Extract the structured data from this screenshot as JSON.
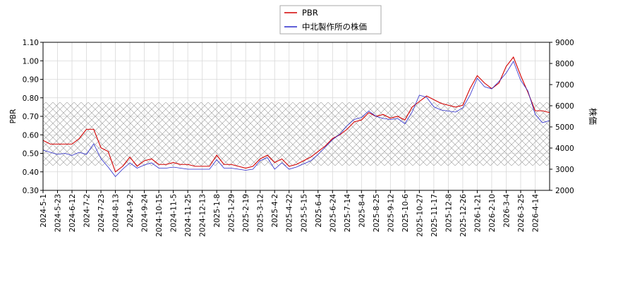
{
  "chart_data": {
    "type": "line",
    "categories": [
      "2024-5-1",
      null,
      "2024-5-23",
      null,
      "2024-6-12",
      null,
      "2024-7-2",
      null,
      "2024-7-23",
      null,
      "2024-8-13",
      null,
      "2024-9-2",
      null,
      "2024-9-24",
      null,
      "2024-10-15",
      null,
      "2024-11-5",
      null,
      "2024-11-25",
      null,
      "2024-12-13",
      null,
      "2025-1-8",
      null,
      "2025-1-29",
      null,
      "2025-2-19",
      null,
      "2025-3-12",
      null,
      "2025-4-2",
      null,
      "2025-4-22",
      null,
      "2025-5-15",
      null,
      "2025-6-4",
      null,
      "2025-6-24",
      null,
      "2025-7-14",
      null,
      "2025-8-4",
      null,
      "2025-8-25",
      null,
      "2025-9-12",
      null,
      "2025-10-6",
      null,
      "2025-10-27",
      null,
      "2025-11-17",
      null,
      "2025-12-8",
      null,
      "2025-12-26",
      null,
      "2026-1-21",
      null,
      "2026-2-10",
      null,
      "2026-3-4",
      null,
      "2026-3-25",
      null,
      "2026-4-14",
      null,
      null
    ],
    "series": [
      {
        "name": "PBR",
        "color": "#d40000",
        "values": [
          0.57,
          0.55,
          0.55,
          0.55,
          0.55,
          0.58,
          0.63,
          0.63,
          0.53,
          0.51,
          0.4,
          0.43,
          0.48,
          0.43,
          0.46,
          0.47,
          0.44,
          0.44,
          0.45,
          0.44,
          0.44,
          0.43,
          0.43,
          0.43,
          0.49,
          0.44,
          0.44,
          0.43,
          0.42,
          0.43,
          0.47,
          0.49,
          0.45,
          0.47,
          0.43,
          0.44,
          0.46,
          0.48,
          0.51,
          0.54,
          0.58,
          0.6,
          0.63,
          0.67,
          0.68,
          0.72,
          0.7,
          0.71,
          0.69,
          0.7,
          0.68,
          0.75,
          0.78,
          0.81,
          0.79,
          0.77,
          0.76,
          0.75,
          0.76,
          0.85,
          0.92,
          0.88,
          0.85,
          0.88,
          0.97,
          1.02,
          0.92,
          0.83,
          0.73,
          0.73,
          0.72
        ]
      },
      {
        "name": "中北製作所の株価",
        "color": "#2a2acc",
        "axis": "y2",
        "values": [
          3900,
          3800,
          3700,
          3750,
          3650,
          3800,
          3700,
          4200,
          3500,
          3100,
          2650,
          3000,
          3300,
          3050,
          3200,
          3300,
          3050,
          3050,
          3100,
          3050,
          3000,
          3000,
          3000,
          3000,
          3450,
          3050,
          3050,
          3000,
          2950,
          3000,
          3400,
          3550,
          3000,
          3300,
          3000,
          3100,
          3250,
          3400,
          3700,
          4050,
          4400,
          4650,
          5050,
          5350,
          5450,
          5750,
          5500,
          5400,
          5350,
          5400,
          5150,
          5700,
          6500,
          6400,
          5950,
          5800,
          5750,
          5700,
          5900,
          6500,
          7300,
          6900,
          6800,
          7150,
          7550,
          8100,
          7200,
          6700,
          5600,
          5200,
          5300
        ]
      }
    ],
    "ylabel": "PBR",
    "y2label": "株価",
    "ylim": [
      0.3,
      1.1
    ],
    "yticks": [
      {
        "value": 0.3,
        "label": "0.30"
      },
      {
        "value": 0.4,
        "label": "0.40"
      },
      {
        "value": 0.5,
        "label": "0.50"
      },
      {
        "value": 0.6,
        "label": "0.60"
      },
      {
        "value": 0.7,
        "label": "0.70"
      },
      {
        "value": 0.8,
        "label": "0.80"
      },
      {
        "value": 0.9,
        "label": "0.90"
      },
      {
        "value": 1.0,
        "label": "1.00"
      },
      {
        "value": 1.1,
        "label": "1.10"
      }
    ],
    "y2lim": [
      2000,
      9000
    ],
    "y2ticks": [
      2000,
      3000,
      4000,
      5000,
      6000,
      7000,
      8000,
      9000
    ],
    "grid": true
  }
}
